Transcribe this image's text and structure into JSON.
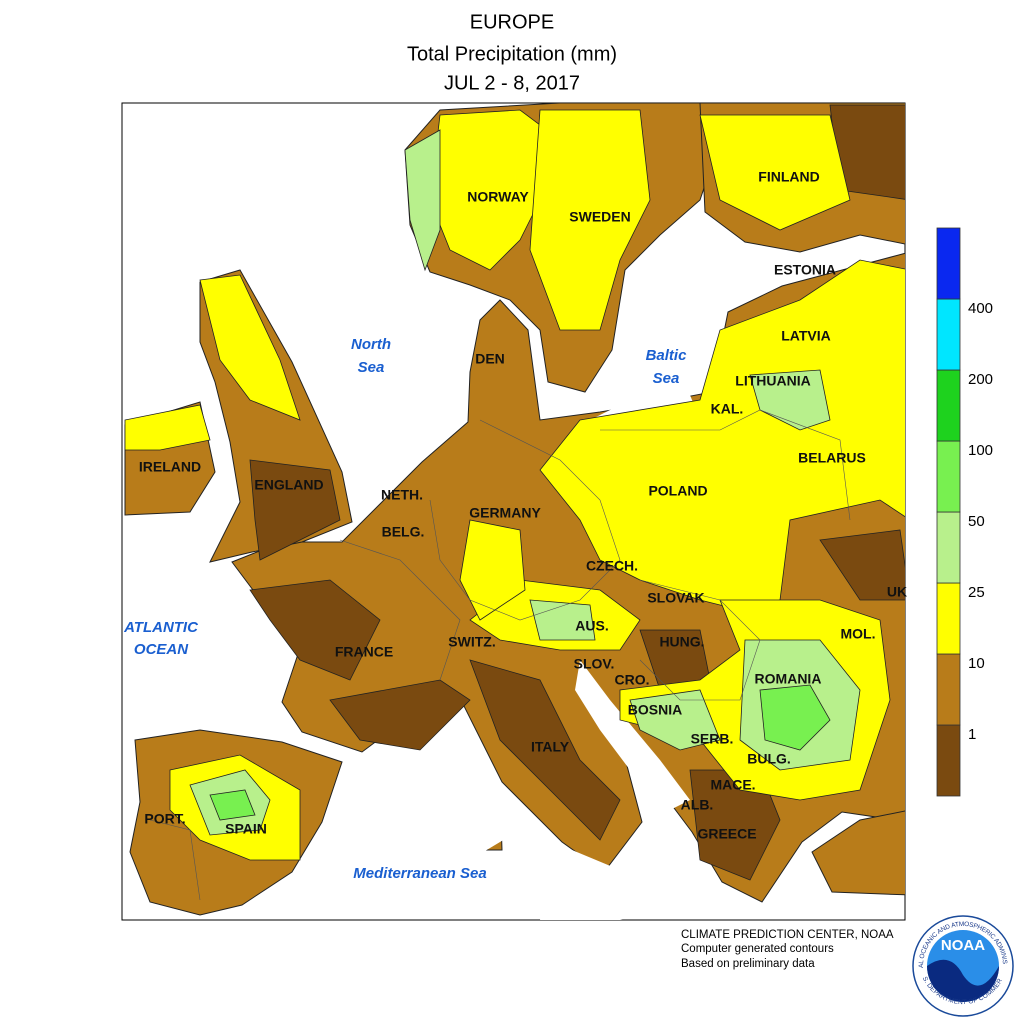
{
  "header": {
    "region": "EUROPE",
    "title": "Total Precipitation (mm)",
    "period": "JUL 2 - 8, 2017"
  },
  "labels": {
    "countries": [
      "NORWAY",
      "SWEDEN",
      "FINLAND",
      "ESTONIA",
      "LATVIA",
      "LITHUANIA",
      "KAL.",
      "BELARUS",
      "POLAND",
      "IRELAND",
      "ENGLAND",
      "NETH.",
      "BELG.",
      "GERMANY",
      "DEN",
      "CZECH.",
      "SLOVAK",
      "UK",
      "AUS.",
      "MOL.",
      "HUNG.",
      "SWITZ.",
      "FRANCE",
      "SLOV.",
      "CRO.",
      "ROMANIA",
      "BOSNIA",
      "SERB.",
      "ITALY",
      "BULG.",
      "MACE.",
      "ALB.",
      "GREECE",
      "PORT.",
      "SPAIN"
    ],
    "seas": [
      [
        "North",
        "Sea"
      ],
      [
        "Baltic",
        "Sea"
      ],
      [
        "ATLANTIC",
        "OCEAN"
      ],
      [
        "Mediterranean Sea"
      ]
    ]
  },
  "legend": {
    "levels": [
      1,
      10,
      25,
      50,
      100,
      200,
      400
    ],
    "colors": [
      "#7a4a10",
      "#b87c1a",
      "#ffff00",
      "#b8f08c",
      "#78f050",
      "#1ed21e",
      "#00e6ff",
      "#0a28f0"
    ]
  },
  "footer": [
    "CLIMATE PREDICTION CENTER, NOAA",
    "Computer generated contours",
    "Based on preliminary data"
  ],
  "logo": {
    "text": "NOAA",
    "ring_top": "NATIONAL OCEANIC AND ATMOSPHERIC ADMINISTRATION",
    "ring_bottom": "U.S. DEPARTMENT OF COMMERCE"
  }
}
